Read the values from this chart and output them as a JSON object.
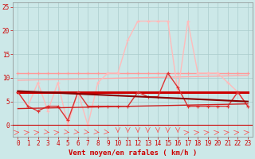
{
  "background_color": "#cce8e8",
  "grid_color": "#aacccc",
  "xlabel": "Vent moyen/en rafales ( km/h )",
  "x_ticks": [
    0,
    1,
    2,
    3,
    4,
    5,
    6,
    7,
    8,
    9,
    10,
    11,
    12,
    13,
    14,
    15,
    16,
    17,
    18,
    19,
    20,
    21,
    22,
    23
  ],
  "ylim": [
    -2.5,
    26
  ],
  "yticks": [
    0,
    5,
    10,
    15,
    20,
    25
  ],
  "lines": [
    {
      "name": "flat_11_light_pink",
      "x": [
        0,
        1,
        2,
        3,
        4,
        5,
        6,
        7,
        8,
        9,
        10,
        11,
        12,
        13,
        14,
        15,
        16,
        17,
        18,
        19,
        20,
        21,
        22,
        23
      ],
      "y": [
        11,
        11,
        11,
        11,
        11,
        11,
        11,
        11,
        11,
        11,
        11,
        11,
        11,
        11,
        11,
        11,
        11,
        11,
        11,
        11,
        11,
        11,
        11,
        11
      ],
      "color": "#ff9999",
      "lw": 1.0,
      "marker": "+",
      "ms": 3,
      "zorder": 2
    },
    {
      "name": "rafales_light_pink",
      "x": [
        0,
        1,
        2,
        3,
        4,
        5,
        6,
        7,
        8,
        9,
        10,
        11,
        12,
        13,
        14,
        15,
        16,
        17,
        18,
        19,
        20,
        21,
        22,
        23
      ],
      "y": [
        7,
        4,
        9,
        3,
        9,
        0,
        7,
        0,
        9,
        11,
        11,
        18,
        22,
        22,
        22,
        22,
        7,
        22,
        11,
        11,
        11,
        9,
        7,
        4
      ],
      "color": "#ffbbbb",
      "lw": 1.0,
      "marker": "+",
      "ms": 3,
      "zorder": 3
    },
    {
      "name": "trend_light_rising",
      "x": [
        0,
        23
      ],
      "y": [
        9.5,
        10.5
      ],
      "color": "#ffaaaa",
      "lw": 1.0,
      "marker": null,
      "ms": 0,
      "zorder": 2
    },
    {
      "name": "vent_moyen_medium_red",
      "x": [
        0,
        1,
        2,
        3,
        4,
        5,
        6,
        7,
        8,
        9,
        10,
        11,
        12,
        13,
        14,
        15,
        16,
        17,
        18,
        19,
        20,
        21,
        22,
        23
      ],
      "y": [
        7,
        4,
        3,
        4,
        4,
        1,
        7,
        4,
        4,
        4,
        4,
        4,
        7,
        6,
        6,
        11,
        8,
        4,
        4,
        4,
        4,
        4,
        7,
        4
      ],
      "color": "#dd3333",
      "lw": 1.0,
      "marker": "+",
      "ms": 3,
      "zorder": 5
    },
    {
      "name": "trend_down_dark",
      "x": [
        0,
        23
      ],
      "y": [
        7.2,
        5.0
      ],
      "color": "#880000",
      "lw": 1.5,
      "marker": null,
      "ms": 0,
      "zorder": 6
    },
    {
      "name": "trend_up_medium",
      "x": [
        0,
        23
      ],
      "y": [
        3.5,
        4.5
      ],
      "color": "#cc2222",
      "lw": 1.0,
      "marker": null,
      "ms": 0,
      "zorder": 6
    },
    {
      "name": "flat_7_dark_thick",
      "x": [
        0,
        1,
        2,
        3,
        4,
        5,
        6,
        7,
        8,
        9,
        10,
        11,
        12,
        13,
        14,
        15,
        16,
        17,
        18,
        19,
        20,
        21,
        22,
        23
      ],
      "y": [
        7,
        7,
        7,
        7,
        7,
        7,
        7,
        7,
        7,
        7,
        7,
        7,
        7,
        7,
        7,
        7,
        7,
        7,
        7,
        7,
        7,
        7,
        7,
        7
      ],
      "color": "#cc0000",
      "lw": 2.2,
      "marker": null,
      "ms": 0,
      "zorder": 4
    }
  ],
  "arrow_color": "#ff4444",
  "axis_label_color": "#cc0000",
  "tick_color": "#cc0000",
  "axis_fontsize": 6.5,
  "tick_fontsize": 5.5
}
